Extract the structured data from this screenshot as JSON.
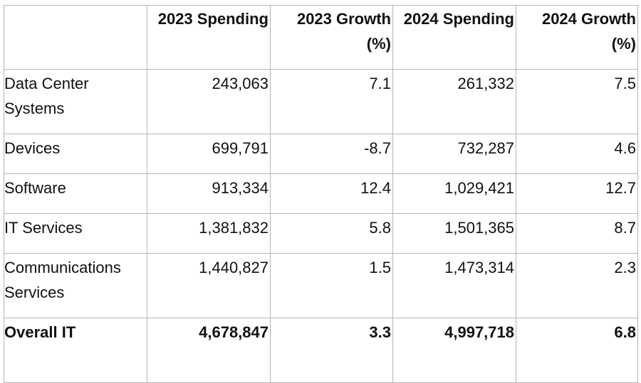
{
  "table": {
    "headers": [
      "",
      "2023 Spending",
      "2023 Growth (%)",
      "2024 Spending",
      "2024 Growth (%)"
    ],
    "rows": [
      {
        "label": "Data Center Systems",
        "values": [
          "243,063",
          "7.1",
          "261,332",
          "7.5"
        ]
      },
      {
        "label": "Devices",
        "values": [
          "699,791",
          "-8.7",
          "732,287",
          "4.6"
        ]
      },
      {
        "label": "Software",
        "values": [
          "913,334",
          "12.4",
          "1,029,421",
          "12.7"
        ]
      },
      {
        "label": "IT Services",
        "values": [
          "1,381,832",
          "5.8",
          "1,501,365",
          "8.7"
        ]
      },
      {
        "label": "Communications Services",
        "values": [
          "1,440,827",
          "1.5",
          "1,473,314",
          "2.3"
        ]
      },
      {
        "label": "Overall IT",
        "values": [
          "4,678,847",
          "3.3",
          "4,997,718",
          "6.8"
        ],
        "total": true
      }
    ]
  }
}
